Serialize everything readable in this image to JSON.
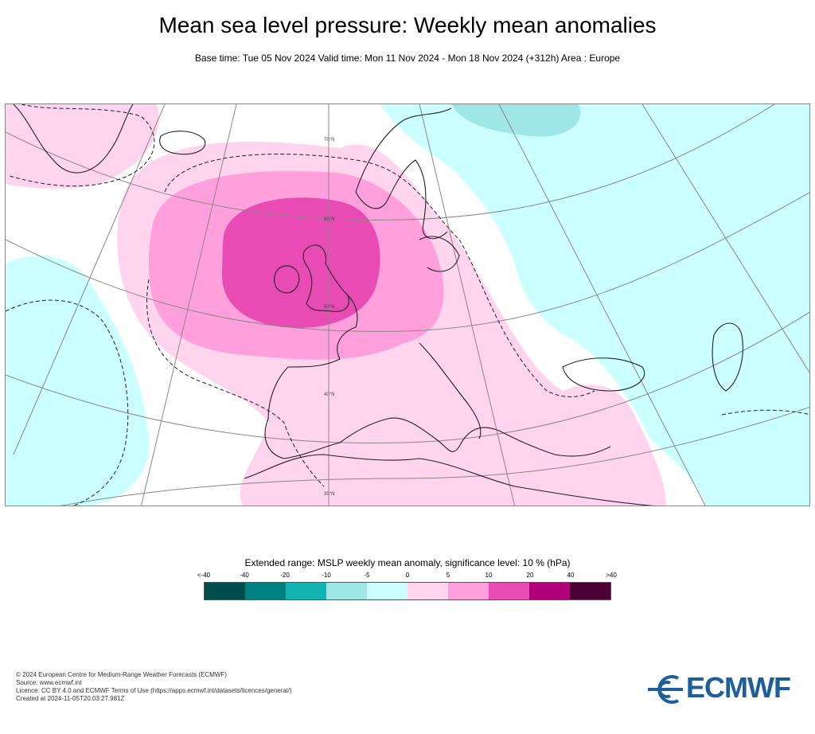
{
  "title": "Mean sea level pressure: Weekly mean anomalies",
  "subtitle": "Base time: Tue 05 Nov 2024 Valid time: Mon 11 Nov 2024 - Mon 18 Nov 2024 (+312h) Area : Europe",
  "map": {
    "latitude_labels": [
      "70°N",
      "60°N",
      "50°N",
      "40°N",
      "30°N"
    ],
    "colors": {
      "land_line": "#222222",
      "grid_line": "#888888"
    }
  },
  "legend": {
    "title": "Extended range: MSLP weekly mean anomaly, significance level: 10 % (hPa)",
    "ticks": [
      "<-40",
      "-40",
      "-20",
      "-10",
      "-5",
      "0",
      "5",
      "10",
      "20",
      "40",
      ">40"
    ],
    "colors": [
      "#004d4d",
      "#008080",
      "#12b4b4",
      "#9fe6e6",
      "#ccffff",
      "#ffd4ef",
      "#ffa0dd",
      "#e84bb4",
      "#b0007a",
      "#4d0033"
    ]
  },
  "credits": [
    "© 2024 European Centre for Medium-Range Weather Forecasts (ECMWF)",
    "Source: www.ecmwf.int",
    "Licence: CC BY 4.0 and ECMWF Terms of Use (https://apps.ecmwf.int/datasets/licences/general/)",
    "Created at 2024-11-05T20:03:27.981Z"
  ],
  "logo": {
    "text": "ECMWF",
    "color": "#1d5f9a"
  }
}
